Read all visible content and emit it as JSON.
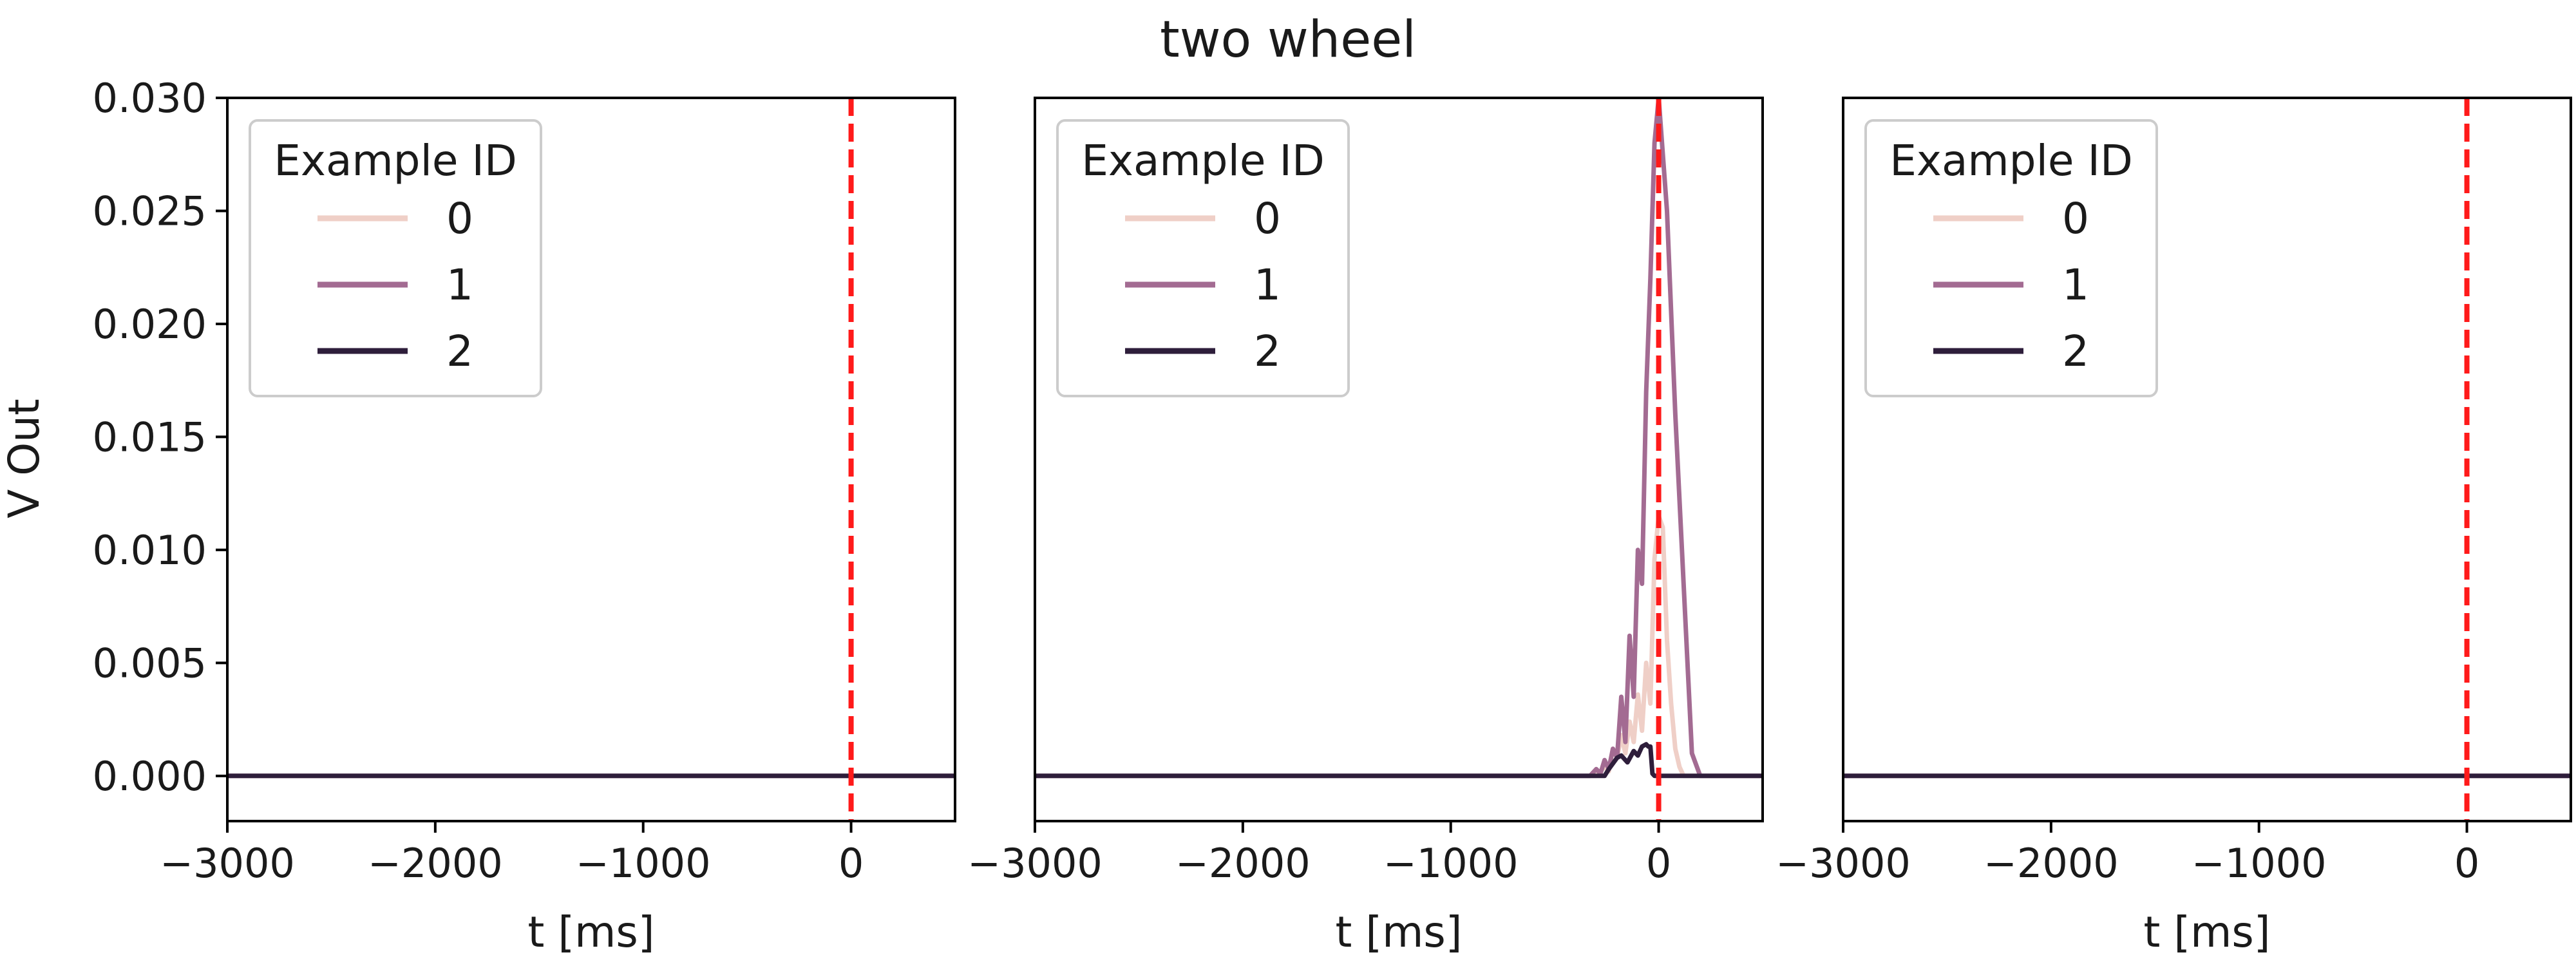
{
  "figure": {
    "title": "two wheel",
    "ylabel": "V Out",
    "xlabel": "t [ms]",
    "legend_title": "Example ID"
  },
  "colors": {
    "series_0": "#efcfc7",
    "series_1": "#a36b92",
    "series_2": "#2e1e3b",
    "marker": "#ff1a1a",
    "axis": "#000000",
    "legend_border": "#cccccc"
  },
  "chart_data": [
    {
      "type": "line",
      "panel": 1,
      "xlim": [
        -3000,
        500
      ],
      "ylim": [
        -0.002,
        0.03
      ],
      "xticks": [
        -3000,
        -2000,
        -1000,
        0
      ],
      "xtick_labels": [
        "−3000",
        "−2000",
        "−1000",
        "0"
      ],
      "yticks": [
        0.0,
        0.005,
        0.01,
        0.015,
        0.02,
        0.025,
        0.03
      ],
      "ytick_labels": [
        "0.000",
        "0.005",
        "0.010",
        "0.015",
        "0.020",
        "0.025",
        "0.030"
      ],
      "xlabel": "t [ms]",
      "ylabel": "V Out",
      "grid": false,
      "legend": {
        "title": "Example ID",
        "placement": "upper-left",
        "entries": [
          "0",
          "1",
          "2"
        ]
      },
      "vline": {
        "x": 0,
        "style": "dashed"
      },
      "series": [
        {
          "name": "0",
          "x": [
            -3000,
            500
          ],
          "y": [
            0,
            0
          ]
        },
        {
          "name": "1",
          "x": [
            -3000,
            500
          ],
          "y": [
            0,
            0
          ]
        },
        {
          "name": "2",
          "x": [
            -3000,
            500
          ],
          "y": [
            0,
            0
          ]
        }
      ]
    },
    {
      "type": "line",
      "panel": 2,
      "xlim": [
        -3000,
        500
      ],
      "ylim": [
        -0.002,
        0.03
      ],
      "xticks": [
        -3000,
        -2000,
        -1000,
        0
      ],
      "xtick_labels": [
        "−3000",
        "−2000",
        "−1000",
        "0"
      ],
      "xlabel": "t [ms]",
      "grid": false,
      "legend": {
        "title": "Example ID",
        "placement": "upper-left",
        "entries": [
          "0",
          "1",
          "2"
        ]
      },
      "vline": {
        "x": 0,
        "style": "dashed"
      },
      "series": [
        {
          "name": "0",
          "x": [
            -3000,
            -300,
            -260,
            -240,
            -220,
            -200,
            -180,
            -160,
            -140,
            -120,
            -100,
            -80,
            -60,
            -40,
            -20,
            0,
            20,
            40,
            60,
            80,
            100,
            120,
            500
          ],
          "y": [
            0,
            0,
            0.0004,
            0.0002,
            0.0012,
            0.0008,
            0.0018,
            0.001,
            0.0024,
            0.0015,
            0.0036,
            0.002,
            0.005,
            0.0032,
            0.0096,
            0.0115,
            0.011,
            0.006,
            0.0032,
            0.0012,
            0.0004,
            0,
            0
          ]
        },
        {
          "name": "1",
          "x": [
            -3000,
            -330,
            -300,
            -280,
            -260,
            -240,
            -220,
            -200,
            -180,
            -160,
            -140,
            -120,
            -100,
            -80,
            -60,
            -40,
            -20,
            0,
            40,
            80,
            120,
            160,
            200,
            500
          ],
          "y": [
            0,
            0,
            0.0003,
            0.0001,
            0.0007,
            0.0003,
            0.0012,
            0.0008,
            0.0035,
            0.0015,
            0.0062,
            0.0035,
            0.01,
            0.0085,
            0.017,
            0.022,
            0.028,
            0.03,
            0.025,
            0.016,
            0.0085,
            0.001,
            0,
            0
          ]
        },
        {
          "name": "2",
          "x": [
            -3000,
            -260,
            -240,
            -200,
            -180,
            -150,
            -120,
            -100,
            -80,
            -60,
            -50,
            -40,
            -30,
            -20,
            500
          ],
          "y": [
            0,
            0,
            0.0003,
            0.0008,
            0.0009,
            0.0006,
            0.0011,
            0.0009,
            0.0013,
            0.0014,
            0.0013,
            0.0013,
            0.0001,
            0,
            0
          ]
        }
      ]
    },
    {
      "type": "line",
      "panel": 3,
      "xlim": [
        -3000,
        500
      ],
      "ylim": [
        -0.002,
        0.03
      ],
      "xticks": [
        -3000,
        -2000,
        -1000,
        0
      ],
      "xtick_labels": [
        "−3000",
        "−2000",
        "−1000",
        "0"
      ],
      "xlabel": "t [ms]",
      "grid": false,
      "legend": {
        "title": "Example ID",
        "placement": "upper-left",
        "entries": [
          "0",
          "1",
          "2"
        ]
      },
      "vline": {
        "x": 0,
        "style": "dashed"
      },
      "series": [
        {
          "name": "0",
          "x": [
            -3000,
            500
          ],
          "y": [
            0,
            0
          ]
        },
        {
          "name": "1",
          "x": [
            -3000,
            500
          ],
          "y": [
            0,
            0
          ]
        },
        {
          "name": "2",
          "x": [
            -3000,
            500
          ],
          "y": [
            0,
            0
          ]
        }
      ]
    }
  ]
}
